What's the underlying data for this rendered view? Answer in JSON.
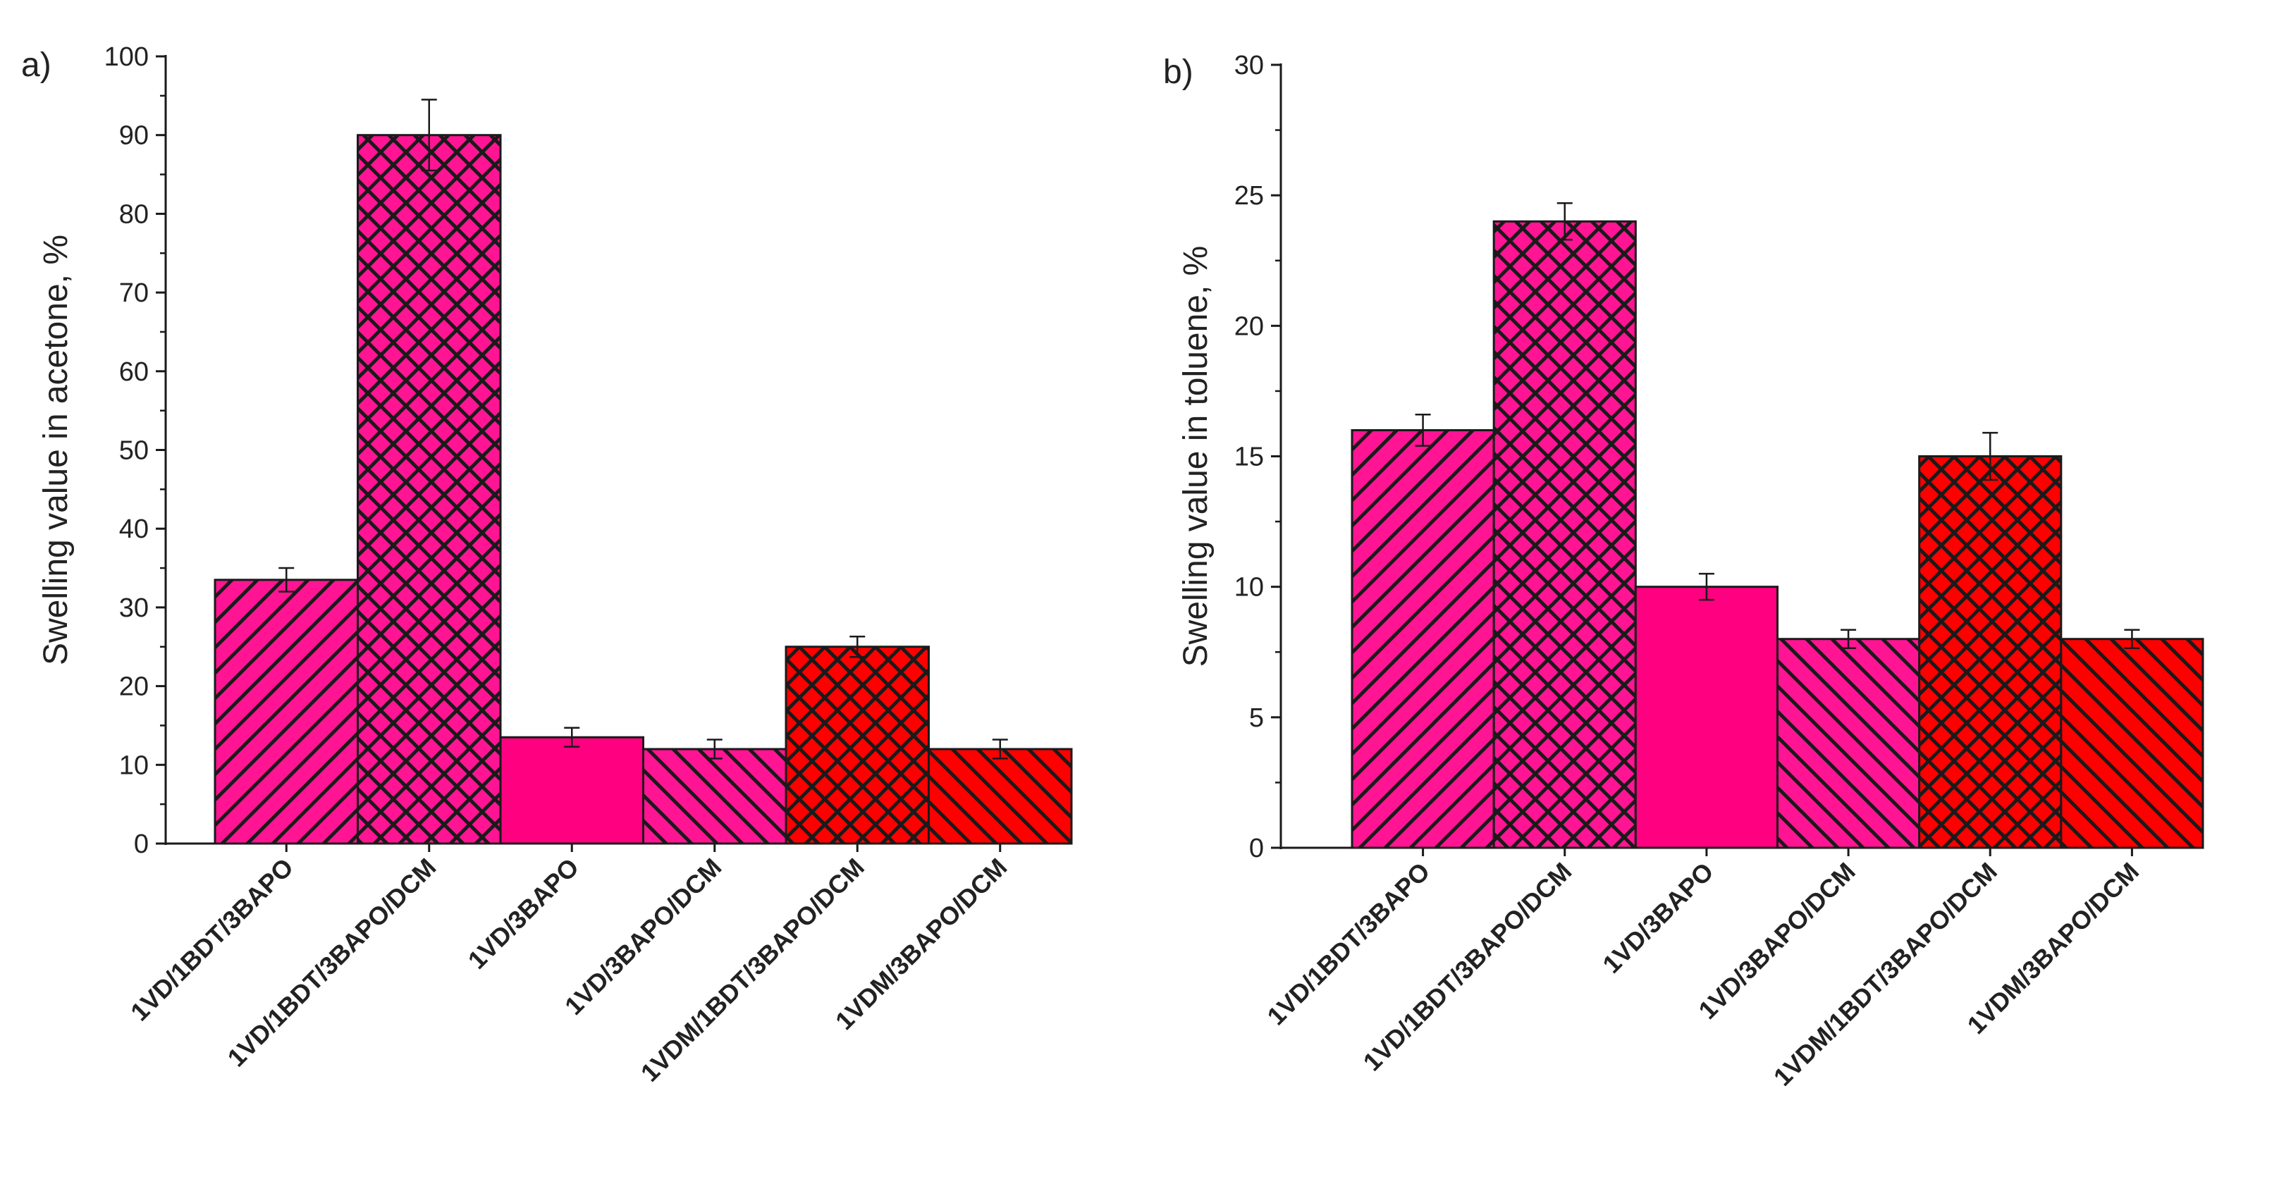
{
  "chart_data": [
    {
      "type": "bar",
      "panel_label": "a)",
      "title": "",
      "xlabel": "",
      "ylabel": "Swelling value in acetone, %",
      "ylim": [
        0,
        100
      ],
      "yticks": [
        0,
        10,
        20,
        30,
        40,
        50,
        60,
        70,
        80,
        90,
        100
      ],
      "categories": [
        "1VD/1BDT/3BAPO",
        "1VD/1BDT/3BAPO/DCM",
        "1VD/3BAPO",
        "1VD/3BAPO/DCM",
        "1VDM/1BDT/3BAPO/DCM",
        "1VDM/3BAPO/DCM"
      ],
      "values": [
        33.5,
        90,
        13.5,
        12,
        25,
        12
      ],
      "errors": [
        1.5,
        4.5,
        1.2,
        1.2,
        1.3,
        1.2
      ],
      "colors": [
        "#ff1493",
        "#ff1493",
        "#ff0080",
        "#ff1493",
        "#ff0000",
        "#ff0000"
      ],
      "patterns": [
        "forward-diagonal",
        "crosshatch",
        "solid",
        "back-diagonal",
        "crosshatch",
        "back-diagonal"
      ],
      "grid": false
    },
    {
      "type": "bar",
      "panel_label": "b)",
      "title": "",
      "xlabel": "",
      "ylabel": "Swelling value in toluene, %",
      "ylim": [
        0,
        30
      ],
      "yticks": [
        0,
        5,
        10,
        15,
        20,
        25,
        30
      ],
      "categories": [
        "1VD/1BDT/3BAPO",
        "1VD/1BDT/3BAPO/DCM",
        "1VD/3BAPO",
        "1VD/3BAPO/DCM",
        "1VDM/1BDT/3BAPO/DCM",
        "1VDM/3BAPO/DCM"
      ],
      "values": [
        16,
        24,
        10,
        8,
        15,
        8
      ],
      "errors": [
        0.6,
        0.7,
        0.5,
        0.35,
        0.9,
        0.35
      ],
      "colors": [
        "#ff1493",
        "#ff1493",
        "#ff0080",
        "#ff1493",
        "#ff0000",
        "#ff0000"
      ],
      "patterns": [
        "forward-diagonal",
        "crosshatch",
        "solid",
        "back-diagonal",
        "crosshatch",
        "back-diagonal"
      ],
      "grid": false
    }
  ]
}
